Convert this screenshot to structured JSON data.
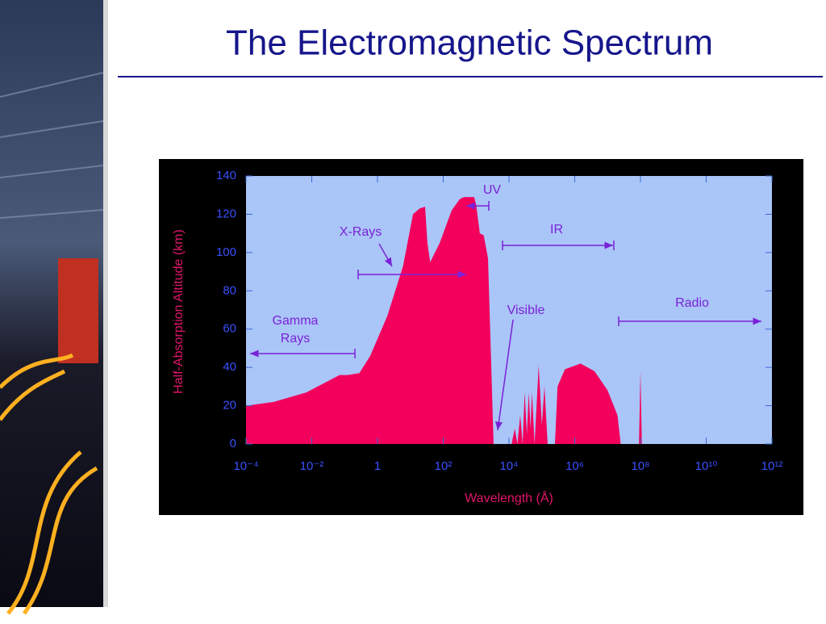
{
  "slide": {
    "title": "The Electromagnetic Spectrum"
  },
  "chart_data": {
    "type": "area",
    "x_label": "Wavelength (Å)",
    "y_label": "Half-Absorption Altitude (km)",
    "xscale": "log",
    "xlim": [
      0.0001,
      1000000000000.0
    ],
    "xticks": [
      {
        "value": 0.0001,
        "label": "10⁻⁴"
      },
      {
        "value": 0.01,
        "label": "10⁻²"
      },
      1,
      {
        "value": 100,
        "label": "10²"
      },
      {
        "value": 10000.0,
        "label": "10⁴"
      },
      {
        "value": 1000000.0,
        "label": "10⁶"
      },
      {
        "value": 100000000.0,
        "label": "10⁸"
      },
      {
        "value": 10000000000.0,
        "label": "10¹⁰"
      },
      {
        "value": 1000000000000.0,
        "label": "10¹²"
      }
    ],
    "ylim": [
      0,
      140
    ],
    "yticks": [
      0,
      20,
      40,
      60,
      80,
      100,
      120,
      140
    ],
    "color": "#f2005c",
    "x": [
      0.0001,
      0.0007,
      0.007,
      0.07,
      0.12,
      0.28,
      0.6,
      2,
      6,
      12,
      19,
      28,
      33,
      40,
      78,
      180,
      320,
      430,
      870,
      1000,
      1300,
      1700,
      2300,
      3400,
      null,
      12000,
      15000,
      18000,
      22000,
      26000,
      30000,
      35000,
      40000,
      45000,
      50000,
      60000,
      80000,
      100000,
      120000,
      150000,
      null,
      250000,
      300000,
      500000,
      1500000,
      4000000,
      10000000,
      20000000,
      25000000,
      null,
      90000000,
      100000000,
      110000000
    ],
    "values": [
      20,
      22,
      27,
      36,
      36,
      37,
      46,
      67,
      93,
      120,
      123,
      124,
      105,
      95,
      105,
      122,
      128,
      129,
      129,
      125,
      110,
      109,
      97,
      0,
      null,
      0,
      8,
      0,
      15,
      0,
      27,
      5,
      27,
      8,
      27,
      0,
      41,
      10,
      30,
      0,
      null,
      0,
      30,
      39,
      42,
      38,
      28,
      15,
      0,
      null,
      0,
      38,
      0
    ],
    "annotations": [
      [
        "Gamma",
        "Rays"
      ],
      "X-Rays",
      "UV",
      "IR",
      "Visible",
      "Radio"
    ]
  }
}
